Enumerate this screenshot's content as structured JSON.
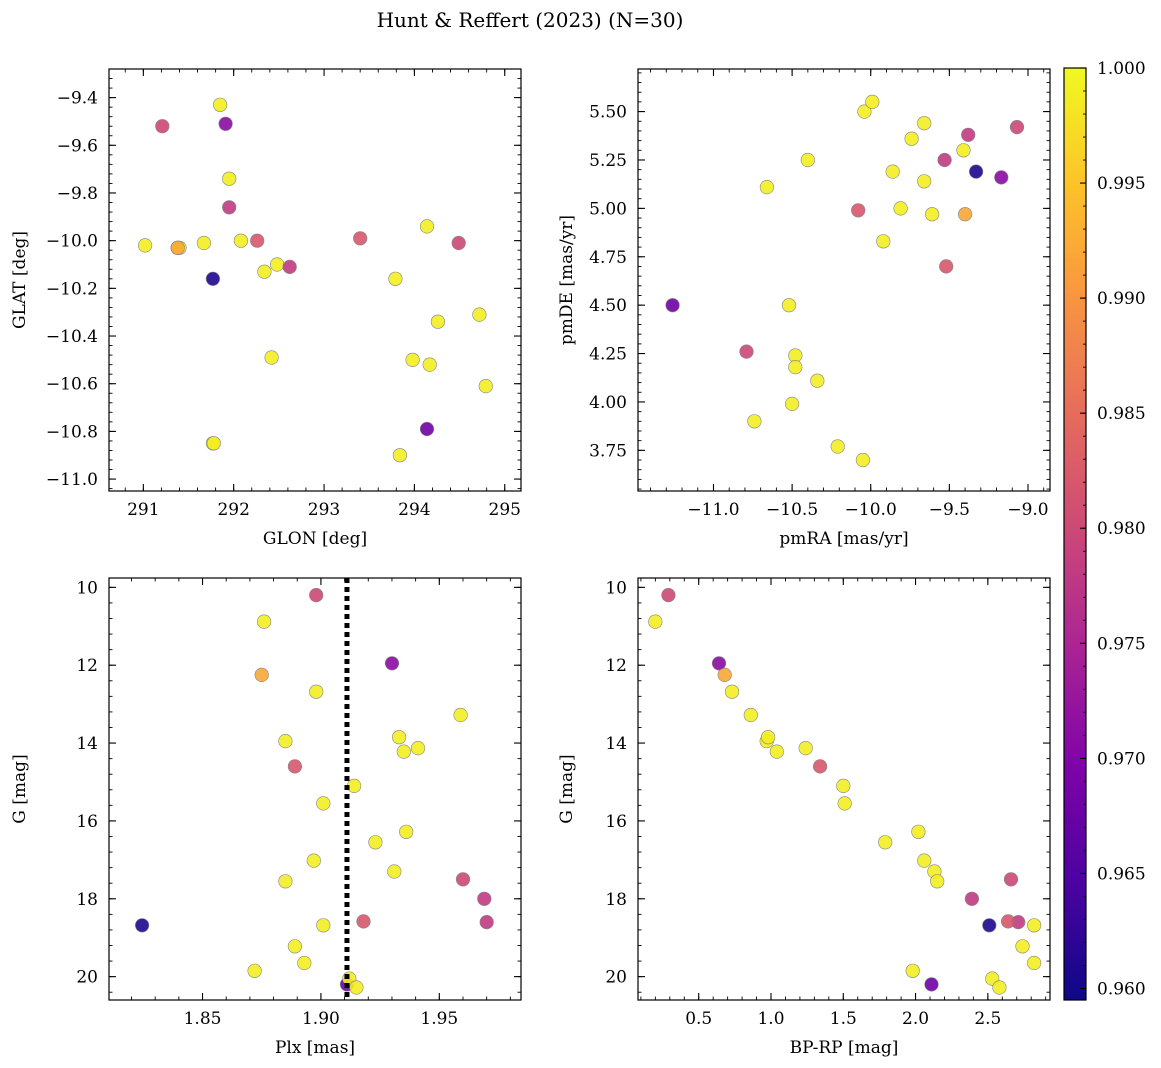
{
  "chart_data": {
    "title": "Hunt & Reffert (2023) (N=30)",
    "colorbar": {
      "colormap": "plasma",
      "range": [
        0.9595,
        1.0
      ],
      "ticks": [
        0.96,
        0.965,
        0.97,
        0.975,
        0.98,
        0.985,
        0.99,
        0.995,
        1.0
      ],
      "tick_labels": [
        "0.960",
        "0.965",
        "0.970",
        "0.975",
        "0.980",
        "0.985",
        "0.990",
        "0.995",
        "1.000"
      ]
    },
    "panels": [
      {
        "type": "scatter",
        "xlabel": "GLON [deg]",
        "ylabel": "GLAT [deg]",
        "xlim": [
          290.62,
          295.18
        ],
        "ylim": [
          -11.05,
          -9.28
        ],
        "y_inverted": false,
        "xticks": [
          291,
          292,
          293,
          294,
          295
        ],
        "xtick_labels": [
          "291",
          "292",
          "293",
          "294",
          "295"
        ],
        "xminor": 0.2,
        "yticks": [
          -11.0,
          -10.8,
          -10.6,
          -10.4,
          -10.2,
          -10.0,
          -9.8,
          -9.6,
          -9.4
        ],
        "ytick_labels": [
          "−11.0",
          "−10.8",
          "−10.6",
          "−10.4",
          "−10.2",
          "−10.0",
          "−9.8",
          "−9.6",
          "−9.4"
        ],
        "yminor": 0.04
      },
      {
        "type": "scatter",
        "xlabel": "pmRA [mas/yr]",
        "ylabel": "pmDE [mas/yr]",
        "xlim": [
          -11.48,
          -8.86
        ],
        "ylim": [
          3.54,
          5.72
        ],
        "y_inverted": false,
        "xticks": [
          -11.0,
          -10.5,
          -10.0,
          -9.5,
          -9.0
        ],
        "xtick_labels": [
          "−11.0",
          "−10.5",
          "−10.0",
          "−9.5",
          "−9.0"
        ],
        "xminor": 0.1,
        "yticks": [
          3.75,
          4.0,
          4.25,
          4.5,
          4.75,
          5.0,
          5.25,
          5.5
        ],
        "ytick_labels": [
          "3.75",
          "4.00",
          "4.25",
          "4.50",
          "4.75",
          "5.00",
          "5.25",
          "5.50"
        ],
        "yminor": 0.05
      },
      {
        "type": "scatter",
        "xlabel": "Plx [mas]",
        "ylabel": "G [mag]",
        "xlim": [
          1.8105,
          1.9845
        ],
        "ylim": [
          9.76,
          20.6
        ],
        "y_inverted": true,
        "vline": 1.911,
        "xticks": [
          1.85,
          1.9,
          1.95
        ],
        "xtick_labels": [
          "1.85",
          "1.90",
          "1.95"
        ],
        "xminor": 0.01,
        "yticks": [
          10,
          12,
          14,
          16,
          18,
          20
        ],
        "ytick_labels": [
          "10",
          "12",
          "14",
          "16",
          "18",
          "20"
        ],
        "yminor": 0.4
      },
      {
        "type": "scatter",
        "xlabel": "BP-RP [mag]",
        "ylabel": "G [mag]",
        "xlim": [
          0.08,
          2.93
        ],
        "ylim": [
          9.76,
          20.6
        ],
        "y_inverted": true,
        "xticks": [
          0.5,
          1.0,
          1.5,
          2.0,
          2.5
        ],
        "xtick_labels": [
          "0.5",
          "1.0",
          "1.5",
          "2.0",
          "2.5"
        ],
        "xminor": 0.1,
        "yticks": [
          10,
          12,
          14,
          16,
          18,
          20
        ],
        "ytick_labels": [
          "10",
          "12",
          "14",
          "16",
          "18",
          "20"
        ],
        "yminor": 0.4
      }
    ],
    "stars": [
      {
        "glon": 291.02,
        "glat": -10.02,
        "pmra": -10.66,
        "pmde": 5.11,
        "plx": 1.872,
        "g": 19.85,
        "bprp": 1.98,
        "p": 0.999
      },
      {
        "glon": 291.21,
        "glat": -9.52,
        "pmra": -10.79,
        "pmde": 4.26,
        "plx": 1.898,
        "g": 10.2,
        "bprp": 0.29,
        "p": 0.98
      },
      {
        "glon": 291.38,
        "glat": -10.03,
        "pmra": -10.4,
        "pmde": 5.25,
        "plx": 1.914,
        "g": 15.1,
        "bprp": 1.5,
        "p": 0.999
      },
      {
        "glon": 291.4,
        "glat": -10.03,
        "pmra": -10.34,
        "pmde": 4.11,
        "plx": 1.901,
        "g": 15.55,
        "bprp": 1.51,
        "p": 0.999
      },
      {
        "glon": 291.67,
        "glat": -10.01,
        "pmra": -9.86,
        "pmde": 5.19,
        "plx": 1.897,
        "g": 17.02,
        "bprp": 2.06,
        "p": 0.999
      },
      {
        "glon": 291.77,
        "glat": -10.16,
        "pmra": -9.33,
        "pmde": 5.19,
        "plx": 1.8245,
        "g": 18.68,
        "bprp": 2.51,
        "p": 0.961
      },
      {
        "glon": 291.77,
        "glat": -10.85,
        "pmra": -10.48,
        "pmde": 4.24,
        "plx": 1.931,
        "g": 17.3,
        "bprp": 2.13,
        "p": 0.999
      },
      {
        "glon": 291.78,
        "glat": -10.85,
        "pmra": -10.5,
        "pmde": 3.99,
        "plx": 1.901,
        "g": 18.68,
        "bprp": 2.82,
        "p": 0.999
      },
      {
        "glon": 291.85,
        "glat": -9.43,
        "pmra": -10.04,
        "pmde": 5.5,
        "plx": 1.876,
        "g": 10.88,
        "bprp": 0.2,
        "p": 0.999
      },
      {
        "glon": 291.91,
        "glat": -9.51,
        "pmra": -9.17,
        "pmde": 5.16,
        "plx": 1.93,
        "g": 11.95,
        "bprp": 0.64,
        "p": 0.971
      },
      {
        "glon": 291.95,
        "glat": -9.74,
        "pmra": -9.99,
        "pmde": 5.55,
        "plx": 1.898,
        "g": 12.68,
        "bprp": 0.73,
        "p": 0.999
      },
      {
        "glon": 291.95,
        "glat": -9.86,
        "pmra": -9.53,
        "pmde": 5.25,
        "plx": 1.969,
        "g": 18.0,
        "bprp": 2.39,
        "p": 0.978
      },
      {
        "glon": 292.08,
        "glat": -10.0,
        "pmra": -9.66,
        "pmde": 5.44,
        "plx": 1.885,
        "g": 13.95,
        "bprp": 0.97,
        "p": 0.999
      },
      {
        "glon": 292.26,
        "glat": -10.0,
        "pmra": -10.08,
        "pmde": 4.99,
        "plx": 1.889,
        "g": 14.6,
        "bprp": 1.34,
        "p": 0.982
      },
      {
        "glon": 292.34,
        "glat": -10.13,
        "pmra": -9.61,
        "pmde": 4.97,
        "plx": 1.923,
        "g": 16.55,
        "bprp": 1.79,
        "p": 0.999
      },
      {
        "glon": 292.42,
        "glat": -10.49,
        "pmra": -10.74,
        "pmde": 3.9,
        "plx": 1.885,
        "g": 17.55,
        "bprp": 2.15,
        "p": 0.999
      },
      {
        "glon": 292.48,
        "glat": -10.1,
        "pmra": -9.74,
        "pmde": 5.36,
        "plx": 1.933,
        "g": 13.85,
        "bprp": 0.98,
        "p": 0.999
      },
      {
        "glon": 292.62,
        "glat": -10.11,
        "pmra": -9.38,
        "pmde": 5.38,
        "plx": 1.97,
        "g": 18.6,
        "bprp": 2.71,
        "p": 0.978
      },
      {
        "glon": 293.4,
        "glat": -9.99,
        "pmra": -9.52,
        "pmde": 4.7,
        "plx": 1.918,
        "g": 18.58,
        "bprp": 2.64,
        "p": 0.982
      },
      {
        "glon": 293.79,
        "glat": -10.16,
        "pmra": -10.21,
        "pmde": 3.77,
        "plx": 1.935,
        "g": 14.22,
        "bprp": 1.04,
        "p": 0.999
      },
      {
        "glon": 293.84,
        "glat": -10.9,
        "pmra": -10.05,
        "pmde": 3.7,
        "plx": 1.893,
        "g": 19.65,
        "bprp": 2.82,
        "p": 0.999
      },
      {
        "glon": 293.98,
        "glat": -10.5,
        "pmra": -10.52,
        "pmde": 4.5,
        "plx": 1.941,
        "g": 14.13,
        "bprp": 1.24,
        "p": 0.999
      },
      {
        "glon": 294.14,
        "glat": -9.94,
        "pmra": -9.41,
        "pmde": 5.3,
        "plx": 1.959,
        "g": 13.28,
        "bprp": 0.86,
        "p": 0.999
      },
      {
        "glon": 294.14,
        "glat": -10.79,
        "pmra": -11.26,
        "pmde": 4.5,
        "plx": 1.911,
        "g": 20.2,
        "bprp": 2.11,
        "p": 0.968
      },
      {
        "glon": 294.17,
        "glat": -10.52,
        "pmra": -9.92,
        "pmde": 4.83,
        "plx": 1.889,
        "g": 19.22,
        "bprp": 2.74,
        "p": 0.999
      },
      {
        "glon": 294.26,
        "glat": -10.34,
        "pmra": -10.48,
        "pmde": 4.18,
        "plx": 1.936,
        "g": 16.28,
        "bprp": 2.02,
        "p": 0.999
      },
      {
        "glon": 294.49,
        "glat": -10.01,
        "pmra": -9.07,
        "pmde": 5.42,
        "plx": 1.96,
        "g": 17.5,
        "bprp": 2.66,
        "p": 0.98
      },
      {
        "glon": 294.72,
        "glat": -10.31,
        "pmra": -9.81,
        "pmde": 5.0,
        "plx": 1.912,
        "g": 20.05,
        "bprp": 2.53,
        "p": 0.999
      },
      {
        "glon": 294.79,
        "glat": -10.61,
        "pmra": -9.66,
        "pmde": 5.14,
        "plx": 1.915,
        "g": 20.28,
        "bprp": 2.58,
        "p": 0.999
      },
      {
        "glon": 291.38,
        "glat": -10.03,
        "pmra": -9.4,
        "pmde": 4.97,
        "plx": 1.875,
        "g": 12.25,
        "bprp": 0.68,
        "p": 0.992
      }
    ]
  }
}
